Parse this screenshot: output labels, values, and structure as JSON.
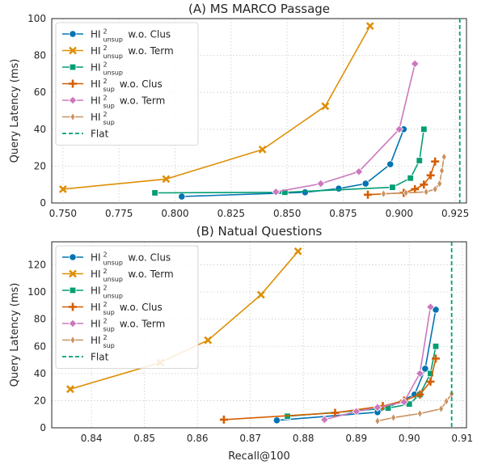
{
  "chart_data": [
    {
      "type": "line",
      "title": "(A) MS MARCO Passage",
      "xlabel": "",
      "ylabel": "Query Latency (ms)",
      "xlim": [
        0.745,
        0.93
      ],
      "ylim": [
        0,
        100
      ],
      "xticks": [
        "0.750",
        "0.775",
        "0.800",
        "0.825",
        "0.850",
        "0.875",
        "0.900",
        "0.925"
      ],
      "yticks": [
        "0",
        "20",
        "40",
        "60",
        "80",
        "100"
      ],
      "grid": true,
      "legend_position": "top-left",
      "series": [
        {
          "name": "HI2unsup w.o. Clus",
          "label_base": "HI",
          "label_sup": "2",
          "label_sub": "unsup",
          "label_suffix": " w.o. Clus",
          "color": "#0173b2",
          "marker": "circle",
          "x": [
            0.803,
            0.858,
            0.873,
            0.885,
            0.896,
            0.902
          ],
          "y": [
            3.5,
            5.8,
            7.8,
            10.5,
            21,
            40
          ]
        },
        {
          "name": "HI2unsup w.o. Term",
          "label_base": "HI",
          "label_sup": "2",
          "label_sub": "unsup",
          "label_suffix": " w.o. Term",
          "color": "#de8f05",
          "marker": "x",
          "x": [
            0.75,
            0.796,
            0.839,
            0.867,
            0.887
          ],
          "y": [
            7.5,
            13,
            29,
            52.5,
            96
          ]
        },
        {
          "name": "HI2unsup",
          "label_base": "HI",
          "label_sup": "2",
          "label_sub": "unsup",
          "label_suffix": "",
          "color": "#029e73",
          "marker": "square",
          "x": [
            0.791,
            0.849,
            0.897,
            0.905,
            0.909,
            0.911
          ],
          "y": [
            5.5,
            5.8,
            8.5,
            13.5,
            23,
            40
          ]
        },
        {
          "name": "HI2sup w.o. Clus",
          "label_base": "HI",
          "label_sup": "2",
          "label_sub": "sup",
          "label_suffix": " w.o. Clus",
          "color": "#d55e00",
          "marker": "plus",
          "x": [
            0.886,
            0.902,
            0.907,
            0.911,
            0.914,
            0.916
          ],
          "y": [
            4.5,
            5.5,
            7.5,
            10,
            15,
            22.5
          ]
        },
        {
          "name": "HI2sup w.o. Term",
          "label_base": "HI",
          "label_sup": "2",
          "label_sub": "sup",
          "label_suffix": " w.o. Term",
          "color": "#cc78bc",
          "marker": "diamond",
          "x": [
            0.845,
            0.865,
            0.882,
            0.9,
            0.907
          ],
          "y": [
            6,
            10.5,
            17,
            40,
            75.5
          ]
        },
        {
          "name": "HI2sup",
          "label_base": "HI",
          "label_sup": "2",
          "label_sub": "sup",
          "label_suffix": "",
          "color": "#ca9161",
          "marker": "thin-diamond",
          "x": [
            0.893,
            0.903,
            0.912,
            0.916,
            0.918,
            0.919,
            0.92
          ],
          "y": [
            5,
            5.5,
            6,
            7.5,
            10.5,
            17.5,
            25
          ]
        },
        {
          "name": "Flat",
          "label_base": "Flat",
          "label_sup": "",
          "label_sub": "",
          "label_suffix": "",
          "color": "#029e73",
          "marker": "none",
          "style": "dashed",
          "vline_x": 0.927
        }
      ]
    },
    {
      "type": "line",
      "title": "(B) Natual Questions",
      "xlabel": "Recall@100",
      "ylabel": "Query Latency (ms)",
      "xlim": [
        0.8325,
        0.9108
      ],
      "ylim": [
        0,
        137
      ],
      "xticks": [
        "0.84",
        "0.85",
        "0.86",
        "0.87",
        "0.88",
        "0.89",
        "0.90",
        "0.91"
      ],
      "yticks": [
        "0",
        "20",
        "40",
        "60",
        "80",
        "100",
        "120"
      ],
      "grid": true,
      "legend_position": "top-left",
      "series": [
        {
          "name": "HI2unsup w.o. Clus",
          "label_base": "HI",
          "label_sup": "2",
          "label_sub": "unsup",
          "label_suffix": " w.o. Clus",
          "color": "#0173b2",
          "marker": "circle",
          "x": [
            0.875,
            0.894,
            0.901,
            0.903,
            0.905
          ],
          "y": [
            5.5,
            11.5,
            24.5,
            43.5,
            87
          ]
        },
        {
          "name": "HI2unsup w.o. Term",
          "label_base": "HI",
          "label_sup": "2",
          "label_sub": "unsup",
          "label_suffix": " w.o. Term",
          "color": "#de8f05",
          "marker": "x",
          "x": [
            0.836,
            0.853,
            0.862,
            0.872,
            0.879
          ],
          "y": [
            28.5,
            48,
            64.5,
            98,
            130
          ]
        },
        {
          "name": "HI2unsup",
          "label_base": "HI",
          "label_sup": "2",
          "label_sub": "unsup",
          "label_suffix": "",
          "color": "#029e73",
          "marker": "square",
          "x": [
            0.877,
            0.896,
            0.9,
            0.902,
            0.904,
            0.905
          ],
          "y": [
            8.5,
            14.5,
            17.5,
            24.5,
            40,
            60
          ]
        },
        {
          "name": "HI2sup w.o. Clus",
          "label_base": "HI",
          "label_sup": "2",
          "label_sub": "sup",
          "label_suffix": " w.o. Clus",
          "color": "#d55e00",
          "marker": "plus",
          "x": [
            0.865,
            0.886,
            0.895,
            0.899,
            0.902,
            0.904,
            0.905
          ],
          "y": [
            6,
            11,
            16,
            20,
            24.5,
            34,
            51
          ]
        },
        {
          "name": "HI2sup w.o. Term",
          "label_base": "HI",
          "label_sup": "2",
          "label_sub": "sup",
          "label_suffix": " w.o. Term",
          "color": "#cc78bc",
          "marker": "diamond",
          "x": [
            0.884,
            0.89,
            0.894,
            0.899,
            0.902,
            0.904
          ],
          "y": [
            6,
            12,
            15,
            19,
            40,
            89
          ]
        },
        {
          "name": "HI2sup",
          "label_base": "HI",
          "label_sup": "2",
          "label_sub": "sup",
          "label_suffix": "",
          "color": "#ca9161",
          "marker": "thin-diamond",
          "x": [
            0.894,
            0.897,
            0.902,
            0.906,
            0.907,
            0.908
          ],
          "y": [
            5,
            7.5,
            10.5,
            14,
            19.5,
            25
          ]
        },
        {
          "name": "Flat",
          "label_base": "Flat",
          "label_sup": "",
          "label_sub": "",
          "label_suffix": "",
          "color": "#029e73",
          "marker": "none",
          "style": "dashed",
          "vline_x": 0.908
        }
      ]
    }
  ]
}
